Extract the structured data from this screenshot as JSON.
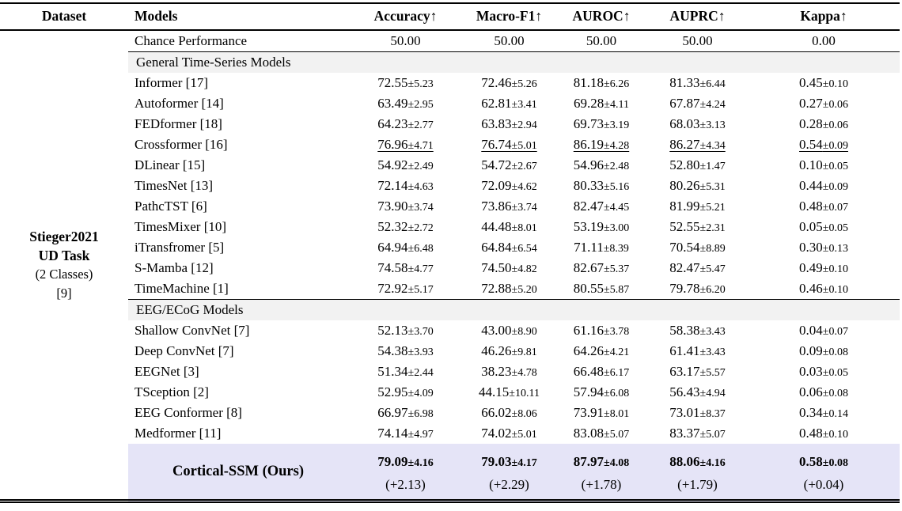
{
  "colors": {
    "section_bg": "#f2f2f2",
    "ours_bg": "#e5e4f7",
    "rule": "#000000"
  },
  "header": {
    "columns": [
      "Dataset",
      "Models",
      "Accuracy↑",
      "Macro-F1↑",
      "AUROC↑",
      "AUPRC↑",
      "Kappa↑"
    ]
  },
  "dataset": {
    "lines": [
      {
        "text": "Stieger2021",
        "bold": true
      },
      {
        "text": "UD Task",
        "bold": true
      },
      {
        "text": "(2 Classes)",
        "bold": false
      },
      {
        "text": "[9]",
        "bold": false
      }
    ]
  },
  "rows": [
    {
      "type": "plain",
      "model": "Chance Performance",
      "values": [
        "50.00",
        "50.00",
        "50.00",
        "50.00",
        "0.00"
      ],
      "rule_below": true
    },
    {
      "type": "section",
      "label": "General Time-Series Models"
    },
    {
      "type": "model",
      "model": "Informer [17]",
      "values": [
        "72.55±5.23",
        "72.46±5.26",
        "81.18±6.26",
        "81.33±6.44",
        "0.45±0.10"
      ]
    },
    {
      "type": "model",
      "model": "Autoformer [14]",
      "values": [
        "63.49±2.95",
        "62.81±3.41",
        "69.28±4.11",
        "67.87±4.24",
        "0.27±0.06"
      ]
    },
    {
      "type": "model",
      "model": "FEDformer [18]",
      "values": [
        "64.23±2.77",
        "63.83±2.94",
        "69.73±3.19",
        "68.03±3.13",
        "0.28±0.06"
      ]
    },
    {
      "type": "model",
      "model": "Crossformer [16]",
      "values": [
        "76.96±4.71",
        "76.74±5.01",
        "86.19±4.28",
        "86.27±4.34",
        "0.54±0.09"
      ],
      "underline": true
    },
    {
      "type": "model",
      "model": "DLinear [15]",
      "values": [
        "54.92±2.49",
        "54.72±2.67",
        "54.96±2.48",
        "52.80±1.47",
        "0.10±0.05"
      ]
    },
    {
      "type": "model",
      "model": "TimesNet [13]",
      "values": [
        "72.14±4.63",
        "72.09±4.62",
        "80.33±5.16",
        "80.26±5.31",
        "0.44±0.09"
      ]
    },
    {
      "type": "model",
      "model": "PathcTST [6]",
      "values": [
        "73.90±3.74",
        "73.86±3.74",
        "82.47±4.45",
        "81.99±5.21",
        "0.48±0.07"
      ]
    },
    {
      "type": "model",
      "model": "TimesMixer [10]",
      "values": [
        "52.32±2.72",
        "44.48±8.01",
        "53.19±3.00",
        "52.55±2.31",
        "0.05±0.05"
      ]
    },
    {
      "type": "model",
      "model": "iTransfromer [5]",
      "values": [
        "64.94±6.48",
        "64.84±6.54",
        "71.11±8.39",
        "70.54±8.89",
        "0.30±0.13"
      ]
    },
    {
      "type": "model",
      "model": "S-Mamba [12]",
      "values": [
        "74.58±4.77",
        "74.50±4.82",
        "82.67±5.37",
        "82.47±5.47",
        "0.49±0.10"
      ]
    },
    {
      "type": "model",
      "model": "TimeMachine [1]",
      "values": [
        "72.92±5.17",
        "72.88±5.20",
        "80.55±5.87",
        "79.78±6.20",
        "0.46±0.10"
      ]
    },
    {
      "type": "section",
      "label": "EEG/ECoG Models",
      "rule_above": true
    },
    {
      "type": "model",
      "model": "Shallow ConvNet [7]",
      "values": [
        "52.13±3.70",
        "43.00±8.90",
        "61.16±3.78",
        "58.38±3.43",
        "0.04±0.07"
      ]
    },
    {
      "type": "model",
      "model": "Deep ConvNet [7]",
      "values": [
        "54.38±3.93",
        "46.26±9.81",
        "64.26±4.21",
        "61.41±3.43",
        "0.09±0.08"
      ]
    },
    {
      "type": "model",
      "model": "EEGNet [3]",
      "values": [
        "51.34±2.44",
        "38.23±4.78",
        "66.48±6.17",
        "63.17±5.57",
        "0.03±0.05"
      ]
    },
    {
      "type": "model",
      "model": "TSception [2]",
      "values": [
        "52.95±4.09",
        "44.15±10.11",
        "57.94±6.08",
        "56.43±4.94",
        "0.06±0.08"
      ]
    },
    {
      "type": "model",
      "model": "EEG Conformer [8]",
      "values": [
        "66.97±6.98",
        "66.02±8.06",
        "73.91±8.01",
        "73.01±8.37",
        "0.34±0.14"
      ]
    },
    {
      "type": "model",
      "model": "Medformer [11]",
      "values": [
        "74.14±4.97",
        "74.02±5.01",
        "83.08±5.07",
        "83.37±5.07",
        "0.48±0.10"
      ]
    },
    {
      "type": "ours",
      "model": "Cortical-SSM (Ours)",
      "values": [
        "79.09±4.16",
        "79.03±4.17",
        "87.97±4.08",
        "88.06±4.16",
        "0.58±0.08"
      ],
      "deltas": [
        "(+2.13)",
        "(+2.29)",
        "(+1.78)",
        "(+1.79)",
        "(+0.04)"
      ]
    }
  ]
}
